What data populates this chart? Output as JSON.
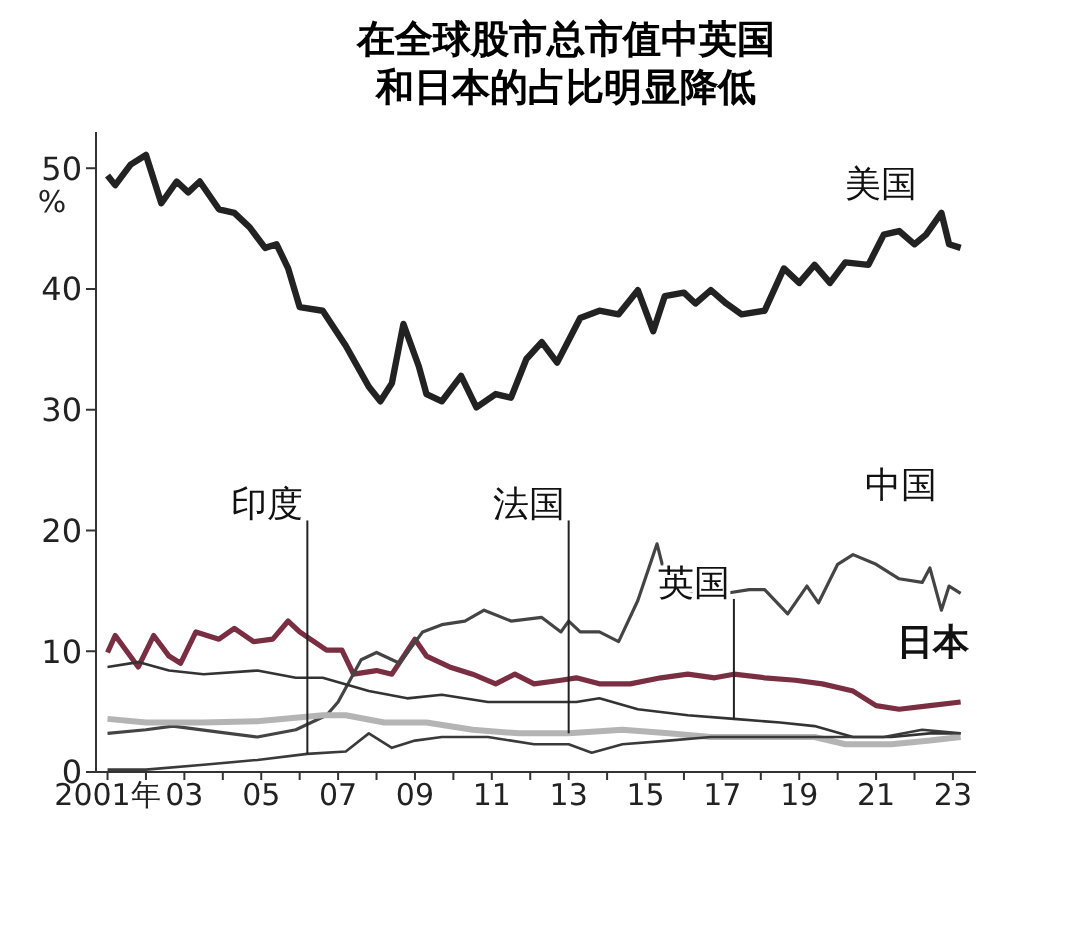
{
  "chart_data": {
    "type": "line",
    "title": "在全球股市总市值中英国和日本的占比明显降低",
    "ylabel": "%",
    "xlim": [
      2000.7,
      2023.6
    ],
    "ylim": [
      0,
      53
    ],
    "xticks": [
      {
        "value": 2001,
        "label": "2001年"
      },
      {
        "value": 2002,
        "label": null
      },
      {
        "value": 2003,
        "label": "03"
      },
      {
        "value": 2004,
        "label": null
      },
      {
        "value": 2005,
        "label": "05"
      },
      {
        "value": 2006,
        "label": null
      },
      {
        "value": 2007,
        "label": "07"
      },
      {
        "value": 2008,
        "label": null
      },
      {
        "value": 2009,
        "label": "09"
      },
      {
        "value": 2010,
        "label": null
      },
      {
        "value": 2011,
        "label": "11"
      },
      {
        "value": 2012,
        "label": null
      },
      {
        "value": 2013,
        "label": "13"
      },
      {
        "value": 2014,
        "label": null
      },
      {
        "value": 2015,
        "label": "15"
      },
      {
        "value": 2016,
        "label": null
      },
      {
        "value": 2017,
        "label": "17"
      },
      {
        "value": 2018,
        "label": null
      },
      {
        "value": 2019,
        "label": "19"
      },
      {
        "value": 2020,
        "label": null
      },
      {
        "value": 2021,
        "label": "21"
      },
      {
        "value": 2022,
        "label": null
      },
      {
        "value": 2023,
        "label": "23"
      }
    ],
    "yticks": [
      0,
      10,
      20,
      30,
      40,
      50
    ],
    "grid": false,
    "legend": false,
    "marker": "none",
    "line_style": "solid",
    "series": [
      {
        "name": "美国",
        "color": "#222222",
        "x": [
          2001.0,
          2001.2,
          2001.6,
          2002.0,
          2002.4,
          2002.8,
          2003.1,
          2003.4,
          2003.9,
          2004.3,
          2004.7,
          2005.1,
          2005.4,
          2005.7,
          2006.0,
          2006.6,
          2007.2,
          2007.8,
          2008.1,
          2008.4,
          2008.7,
          2009.1,
          2009.3,
          2009.7,
          2010.2,
          2010.6,
          2011.1,
          2011.5,
          2011.9,
          2012.3,
          2012.7,
          2013.3,
          2013.8,
          2014.3,
          2014.8,
          2015.2,
          2015.5,
          2016.0,
          2016.3,
          2016.7,
          2017.1,
          2017.5,
          2018.1,
          2018.6,
          2019.0,
          2019.4,
          2019.8,
          2020.2,
          2020.8,
          2021.2,
          2021.6,
          2022.0,
          2022.3,
          2022.7,
          2022.9,
          2023.2
        ],
        "values": [
          49.4,
          48.6,
          50.3,
          51.1,
          47.1,
          48.9,
          48,
          48.9,
          46.6,
          46.3,
          45.1,
          43.4,
          43.7,
          41.7,
          38.5,
          38.2,
          35.3,
          31.9,
          30.7,
          32.2,
          37.1,
          33.6,
          31.3,
          30.7,
          32.8,
          30.2,
          31.3,
          31,
          34.2,
          35.6,
          33.9,
          37.6,
          38.2,
          37.9,
          39.9,
          36.5,
          39.4,
          39.7,
          38.8,
          39.9,
          38.8,
          37.9,
          38.2,
          41.7,
          40.5,
          42,
          40.5,
          42.2,
          42,
          44.5,
          44.8,
          43.7,
          44.5,
          46.3,
          43.7,
          43.4
        ]
      },
      {
        "name": "日本",
        "color": "#7a2e42",
        "x": [
          2001.0,
          2001.2,
          2001.8,
          2002.2,
          2002.6,
          2002.9,
          2003.3,
          2003.9,
          2004.3,
          2004.8,
          2005.3,
          2005.7,
          2006.0,
          2006.7,
          2007.1,
          2007.4,
          2008.0,
          2008.4,
          2009.0,
          2009.3,
          2009.9,
          2010.5,
          2011.1,
          2011.6,
          2012.1,
          2012.8,
          2013.2,
          2013.8,
          2014.6,
          2015.4,
          2016.1,
          2016.8,
          2017.3,
          2018.1,
          2018.9,
          2019.6,
          2020.4,
          2021.0,
          2021.6,
          2022.4,
          2023.2
        ],
        "values": [
          9.9,
          11.3,
          8.7,
          11.3,
          9.6,
          9,
          11.6,
          11,
          11.9,
          10.8,
          11,
          12.5,
          11.6,
          10.1,
          10.1,
          8.1,
          8.4,
          8.1,
          11,
          9.6,
          8.7,
          8.1,
          7.3,
          8.1,
          7.3,
          7.6,
          7.8,
          7.3,
          7.3,
          7.8,
          8.1,
          7.8,
          8.1,
          7.8,
          7.6,
          7.3,
          6.7,
          5.5,
          5.2,
          5.5,
          5.8
        ]
      },
      {
        "name": "中国",
        "color": "#444444",
        "x": [
          2001.0,
          2002.0,
          2002.7,
          2003.9,
          2004.9,
          2005.9,
          2006.7,
          2007.0,
          2007.6,
          2008.0,
          2008.6,
          2009.2,
          2009.7,
          2010.3,
          2010.8,
          2011.5,
          2012.3,
          2012.8,
          2013.0,
          2013.3,
          2013.8,
          2014.3,
          2014.8,
          2015.3,
          2015.6,
          2015.9,
          2016.1,
          2016.7,
          2017.1,
          2017.7,
          2018.1,
          2018.7,
          2019.2,
          2019.5,
          2020.0,
          2020.4,
          2021.0,
          2021.6,
          2022.2,
          2022.4,
          2022.7,
          2022.9,
          2023.2
        ],
        "values": [
          3.2,
          3.5,
          3.8,
          3.3,
          2.9,
          3.5,
          4.7,
          5.8,
          9.3,
          9.9,
          9,
          11.6,
          12.2,
          12.5,
          13.4,
          12.5,
          12.8,
          11.6,
          12.5,
          11.6,
          11.6,
          10.8,
          14.2,
          18.9,
          15.1,
          16.6,
          14.8,
          15.7,
          14.8,
          15.1,
          15.1,
          13.1,
          15.4,
          14,
          17.2,
          18,
          17.2,
          16,
          15.7,
          16.9,
          13.4,
          15.4,
          14.8
        ]
      },
      {
        "name": "英国",
        "color": "#333333",
        "x": [
          2001.0,
          2001.8,
          2002.6,
          2003.5,
          2004.9,
          2005.9,
          2006.6,
          2007.8,
          2008.8,
          2009.7,
          2010.9,
          2012.3,
          2013.2,
          2013.8,
          2014.8,
          2016.1,
          2017.3,
          2018.5,
          2019.4,
          2020.4,
          2021.4,
          2022.4,
          2023.2
        ],
        "values": [
          8.7,
          9.1,
          8.4,
          8.1,
          8.4,
          7.8,
          7.8,
          6.7,
          6.1,
          6.4,
          5.8,
          5.8,
          5.8,
          6.1,
          5.2,
          4.7,
          4.4,
          4.1,
          3.8,
          2.9,
          2.9,
          3.2,
          3.2
        ]
      },
      {
        "name": "法国",
        "color": "#b4b4b4",
        "x": [
          2001.0,
          2002.0,
          2003.5,
          2004.9,
          2006.6,
          2007.2,
          2008.2,
          2009.3,
          2010.5,
          2011.7,
          2013.0,
          2014.4,
          2015.6,
          2016.7,
          2017.9,
          2019.4,
          2020.2,
          2021.4,
          2022.4,
          2023.2
        ],
        "values": [
          4.4,
          4.1,
          4.1,
          4.2,
          4.7,
          4.7,
          4.1,
          4.1,
          3.5,
          3.2,
          3.2,
          3.5,
          3.2,
          2.9,
          2.9,
          2.9,
          2.3,
          2.3,
          2.6,
          2.9
        ]
      },
      {
        "name": "印度",
        "color": "#3a3a3a",
        "x": [
          2001.0,
          2002.0,
          2003.5,
          2004.9,
          2006.2,
          2007.2,
          2007.8,
          2008.4,
          2009.0,
          2009.7,
          2010.9,
          2012.1,
          2013.0,
          2013.6,
          2014.4,
          2015.6,
          2016.7,
          2017.9,
          2019.1,
          2020.2,
          2021.2,
          2022.2,
          2023.2
        ],
        "values": [
          0.2,
          0.2,
          0.6,
          1,
          1.5,
          1.7,
          3.2,
          2,
          2.6,
          2.9,
          2.9,
          2.3,
          2.3,
          1.6,
          2.3,
          2.6,
          2.9,
          2.9,
          2.9,
          2.9,
          2.9,
          3.5,
          3.2
        ]
      }
    ]
  }
}
